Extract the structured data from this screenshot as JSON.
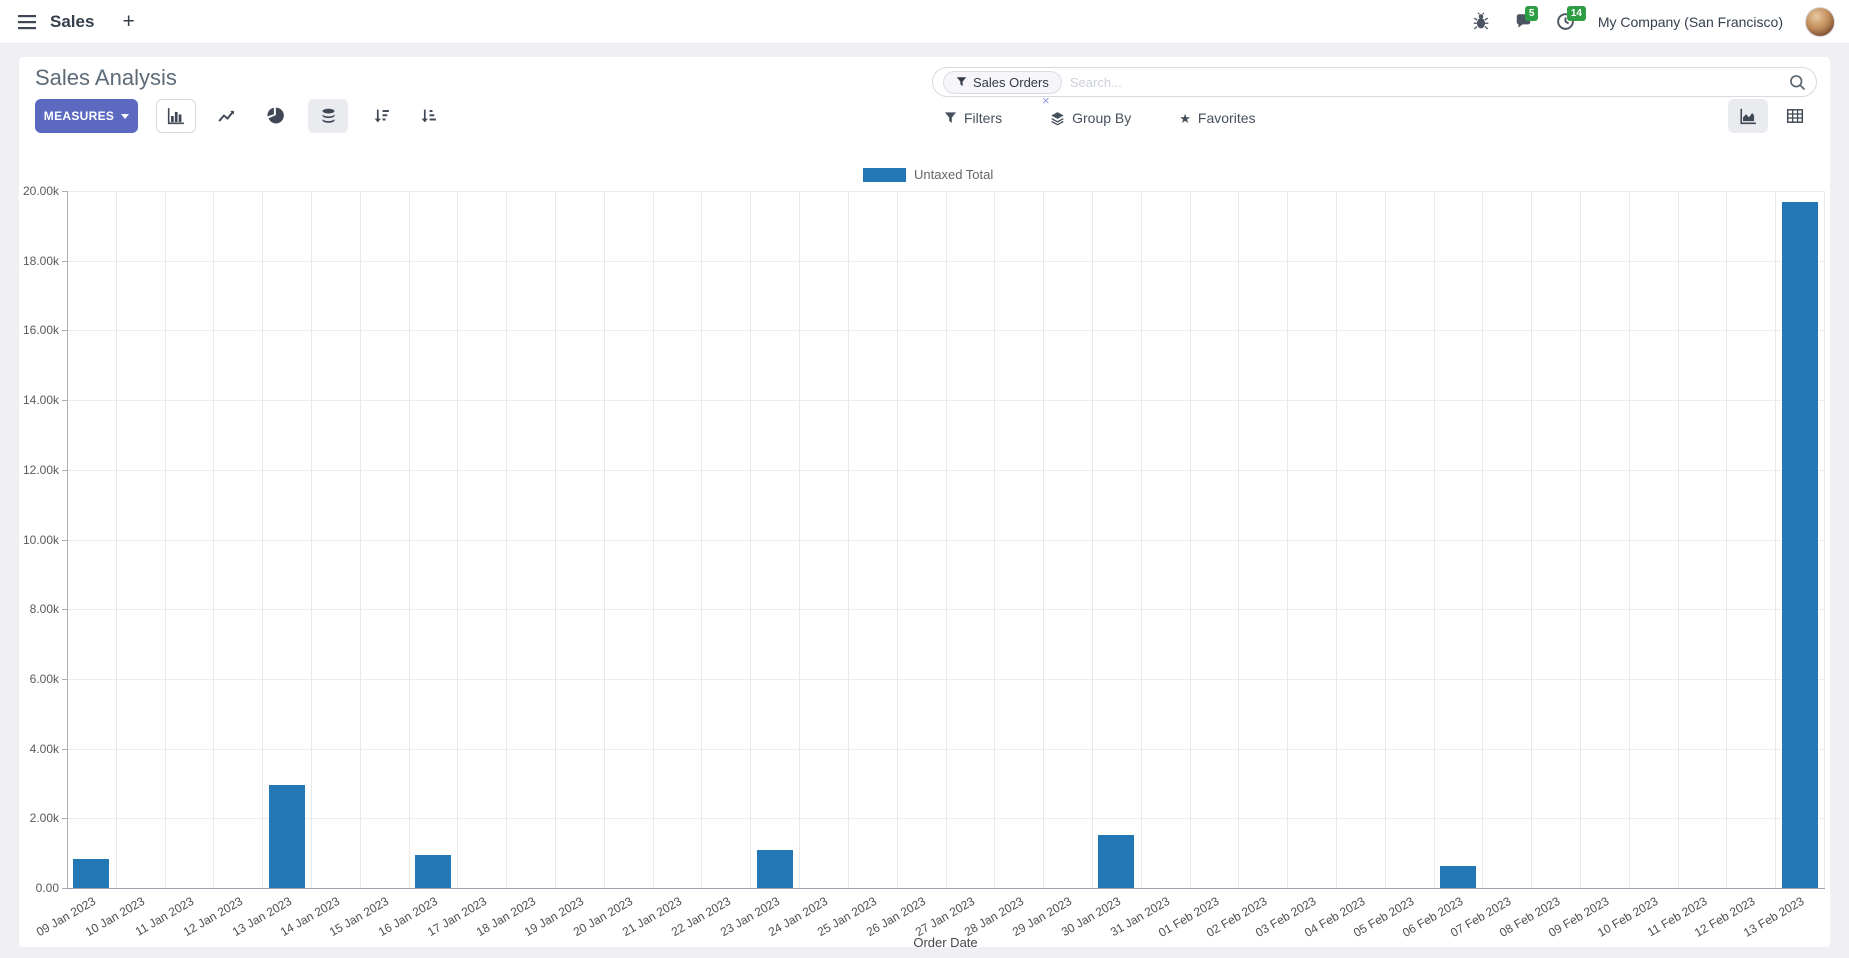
{
  "navbar": {
    "app_name": "Sales",
    "plus": "+",
    "company": "My Company (San Francisco)",
    "messages_badge": "5",
    "activities_badge": "14"
  },
  "control_panel": {
    "title": "Sales Analysis",
    "measures_label": "MEASURES",
    "search": {
      "facet": "Sales Orders",
      "placeholder": "Search...",
      "remove": "×"
    },
    "menus": {
      "filters": "Filters",
      "group_by": "Group By",
      "favorites": "Favorites"
    }
  },
  "icons": {
    "favorites_star": "★"
  },
  "colors": {
    "bar": "#2277b4",
    "accent": "#5b6ac0",
    "badge_green": "#2e9e44"
  },
  "chart_data": {
    "type": "bar",
    "title": "",
    "xlabel": "Order Date",
    "ylabel": "",
    "ylim": [
      0,
      20000
    ],
    "y_tick_step": 2000,
    "grid": true,
    "legend_position": "top",
    "categories": [
      "09 Jan 2023",
      "10 Jan 2023",
      "11 Jan 2023",
      "12 Jan 2023",
      "13 Jan 2023",
      "14 Jan 2023",
      "15 Jan 2023",
      "16 Jan 2023",
      "17 Jan 2023",
      "18 Jan 2023",
      "19 Jan 2023",
      "20 Jan 2023",
      "21 Jan 2023",
      "22 Jan 2023",
      "23 Jan 2023",
      "24 Jan 2023",
      "25 Jan 2023",
      "26 Jan 2023",
      "27 Jan 2023",
      "28 Jan 2023",
      "29 Jan 2023",
      "30 Jan 2023",
      "31 Jan 2023",
      "01 Feb 2023",
      "02 Feb 2023",
      "03 Feb 2023",
      "04 Feb 2023",
      "05 Feb 2023",
      "06 Feb 2023",
      "07 Feb 2023",
      "08 Feb 2023",
      "09 Feb 2023",
      "10 Feb 2023",
      "11 Feb 2023",
      "12 Feb 2023",
      "13 Feb 2023"
    ],
    "series": [
      {
        "name": "Untaxed Total",
        "color": "#2277b4",
        "values": [
          830,
          0,
          0,
          0,
          2950,
          0,
          0,
          960,
          0,
          0,
          0,
          0,
          0,
          0,
          1080,
          0,
          0,
          0,
          0,
          0,
          0,
          1530,
          0,
          0,
          0,
          0,
          0,
          0,
          640,
          0,
          0,
          0,
          0,
          0,
          0,
          19680
        ]
      }
    ]
  }
}
